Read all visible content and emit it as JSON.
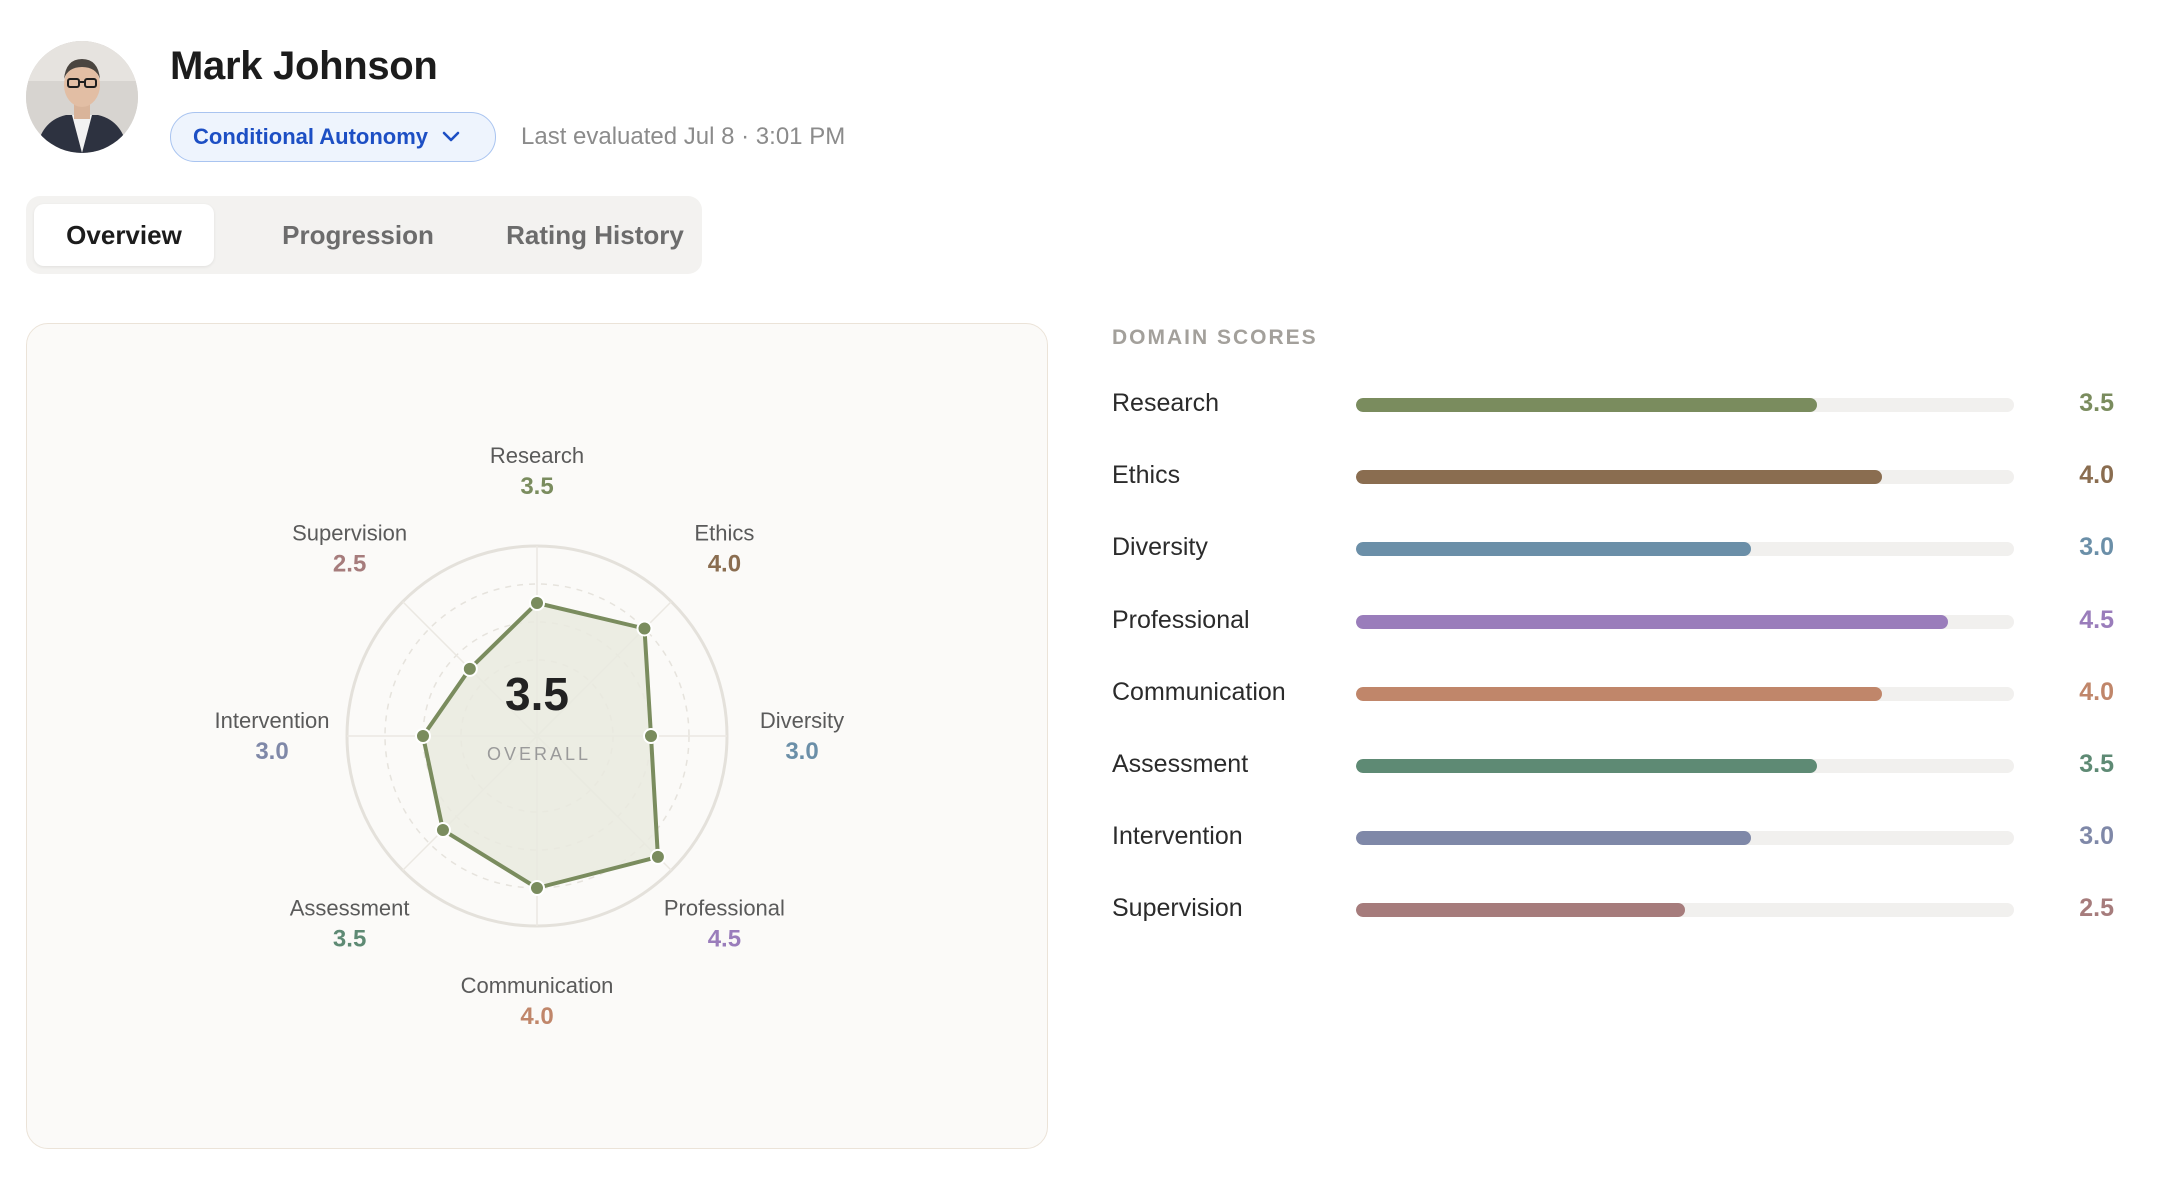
{
  "profile": {
    "name": "Mark Johnson",
    "autonomy_level": "Conditional Autonomy",
    "last_evaluated": "Last evaluated Jul 8 · 3:01 PM",
    "avatar_icon": "person-photo-avatar"
  },
  "tabs": [
    {
      "label": "Overview",
      "active": true
    },
    {
      "label": "Progression",
      "active": false
    },
    {
      "label": "Rating History",
      "active": false
    }
  ],
  "overall": {
    "value": "3.5",
    "caption": "OVERALL"
  },
  "domain_scores_heading": "DOMAIN SCORES",
  "scale_max": 5,
  "domains": [
    {
      "name": "Research",
      "score": 3.5,
      "display": "3.5",
      "color": "#7a8c5e"
    },
    {
      "name": "Ethics",
      "score": 4.0,
      "display": "4.0",
      "color": "#8a6d50"
    },
    {
      "name": "Diversity",
      "score": 3.0,
      "display": "3.0",
      "color": "#6b8fa8"
    },
    {
      "name": "Professional",
      "score": 4.5,
      "display": "4.5",
      "color": "#9a7dbb"
    },
    {
      "name": "Communication",
      "score": 4.0,
      "display": "4.0",
      "color": "#c0866a"
    },
    {
      "name": "Assessment",
      "score": 3.5,
      "display": "3.5",
      "color": "#5e8a74"
    },
    {
      "name": "Intervention",
      "score": 3.0,
      "display": "3.0",
      "color": "#7f88a8"
    },
    {
      "name": "Supervision",
      "score": 2.5,
      "display": "2.5",
      "color": "#a67c7c"
    }
  ],
  "chart_data": {
    "type": "radar",
    "categories": [
      "Research",
      "Ethics",
      "Diversity",
      "Professional",
      "Communication",
      "Assessment",
      "Intervention",
      "Supervision"
    ],
    "values": [
      3.5,
      4.0,
      3.0,
      4.5,
      4.0,
      3.5,
      3.0,
      2.5
    ],
    "series": [
      {
        "values": [
          3.5,
          4.0,
          3.0,
          4.5,
          4.0,
          3.5,
          3.0,
          2.5
        ]
      }
    ],
    "range": [
      0,
      5
    ],
    "grid": true,
    "series_color": "#7a8c5e",
    "fill_color": "#e9eadf"
  }
}
